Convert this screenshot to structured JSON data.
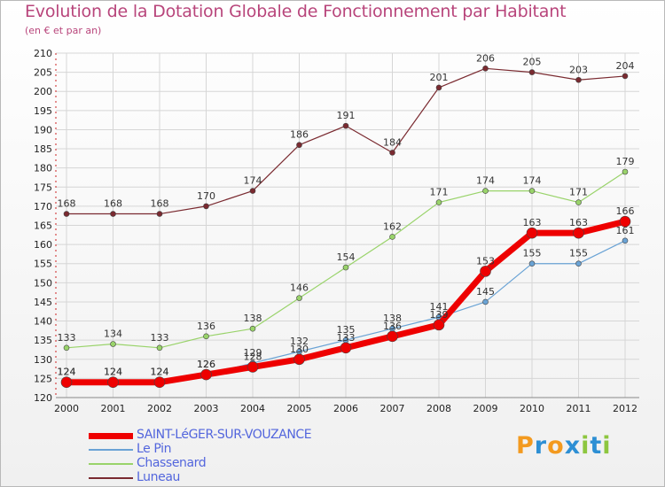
{
  "chart_data": {
    "type": "line",
    "title": "Evolution de la Dotation Globale de Fonctionnement par Habitant",
    "subtitle": "(en € et par an)",
    "x": [
      "2000",
      "2001",
      "2002",
      "2003",
      "2004",
      "2005",
      "2006",
      "2007",
      "2008",
      "2009",
      "2010",
      "2011",
      "2012"
    ],
    "ylim": [
      120,
      210
    ],
    "yticks": [
      120,
      125,
      130,
      135,
      140,
      145,
      150,
      155,
      160,
      165,
      170,
      175,
      180,
      185,
      190,
      195,
      200,
      205,
      210
    ],
    "grid": true,
    "legend_position": "bottom-left",
    "series": [
      {
        "name": "SAINT-LéGER-SUR-VOUZANCE",
        "color": "#ee0000",
        "values": [
          124,
          124,
          124,
          126,
          128,
          130,
          133,
          136,
          139,
          153,
          163,
          163,
          166
        ]
      },
      {
        "name": "Le Pin",
        "color": "#6aa3d5",
        "values": [
          124,
          124,
          124,
          126,
          129,
          132,
          135,
          138,
          141,
          145,
          155,
          155,
          161
        ]
      },
      {
        "name": "Chassenard",
        "color": "#99d36a",
        "values": [
          133,
          134,
          133,
          136,
          138,
          146,
          154,
          162,
          171,
          174,
          174,
          171,
          179
        ]
      },
      {
        "name": "Luneau",
        "color": "#7a2a30",
        "values": [
          168,
          168,
          168,
          170,
          174,
          186,
          191,
          184,
          201,
          206,
          205,
          203,
          204
        ]
      }
    ]
  },
  "logo": {
    "text": "Proxiti",
    "colors": [
      "#f39a1f",
      "#2d8fd4",
      "#f39a1f",
      "#2d8fd4",
      "#8dc63f",
      "#2d8fd4",
      "#8dc63f"
    ]
  }
}
